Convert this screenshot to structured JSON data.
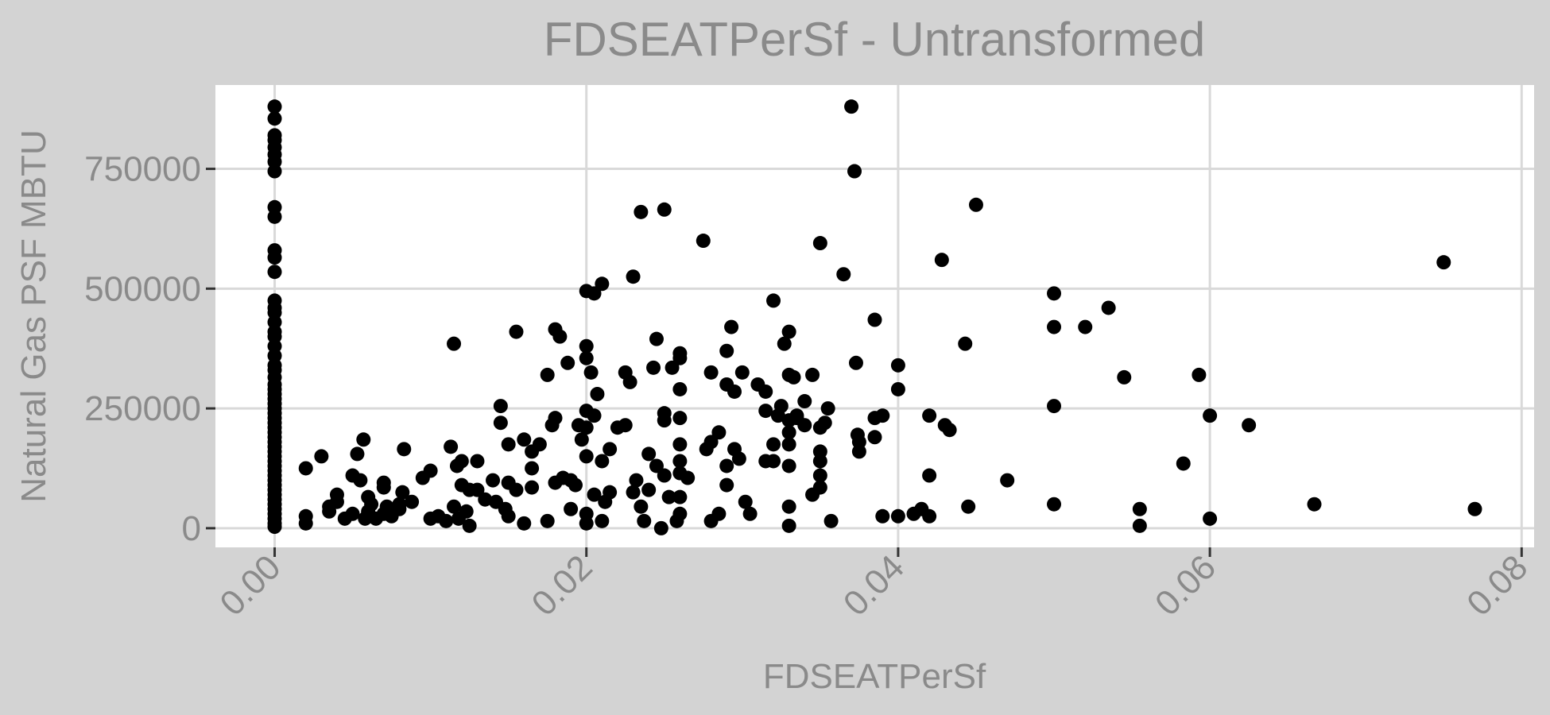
{
  "chart_data": {
    "type": "scatter",
    "title": "FDSEATPerSf - Untransformed",
    "xlabel": "FDSEATPerSf",
    "ylabel": "Natural Gas PSF MBTU",
    "xlim": [
      -0.0038,
      0.0808
    ],
    "ylim": [
      -40000,
      925000
    ],
    "x_ticks": [
      0,
      0.02,
      0.04,
      0.06,
      0.08
    ],
    "x_tick_labels": [
      "0.00",
      "0.02",
      "0.04",
      "0.06",
      "0.08"
    ],
    "y_ticks": [
      0,
      250000,
      500000,
      750000
    ],
    "y_tick_labels": [
      "0",
      "250000",
      "500000",
      "750000"
    ],
    "grid": true,
    "legend": "none",
    "series": [
      {
        "color": "#000000",
        "points": [
          [
            0,
            880000
          ],
          [
            0,
            855000
          ],
          [
            0,
            820000
          ],
          [
            0,
            810000
          ],
          [
            0,
            795000
          ],
          [
            0,
            780000
          ],
          [
            0,
            765000
          ],
          [
            0,
            745000
          ],
          [
            0,
            670000
          ],
          [
            0,
            650000
          ],
          [
            0,
            580000
          ],
          [
            0,
            565000
          ],
          [
            0,
            535000
          ],
          [
            0,
            475000
          ],
          [
            0,
            460000
          ],
          [
            0,
            450000
          ],
          [
            0,
            430000
          ],
          [
            0,
            410000
          ],
          [
            0,
            400000
          ],
          [
            0,
            380000
          ],
          [
            0,
            360000
          ],
          [
            0,
            340000
          ],
          [
            0,
            330000
          ],
          [
            0,
            315000
          ],
          [
            0,
            300000
          ],
          [
            0,
            290000
          ],
          [
            0,
            280000
          ],
          [
            0,
            270000
          ],
          [
            0,
            260000
          ],
          [
            0,
            250000
          ],
          [
            0,
            240000
          ],
          [
            0,
            230000
          ],
          [
            0,
            220000
          ],
          [
            0,
            210000
          ],
          [
            0,
            200000
          ],
          [
            0,
            190000
          ],
          [
            0,
            180000
          ],
          [
            0,
            170000
          ],
          [
            0,
            160000
          ],
          [
            0,
            150000
          ],
          [
            0,
            140000
          ],
          [
            0,
            130000
          ],
          [
            0,
            120000
          ],
          [
            0,
            110000
          ],
          [
            0,
            100000
          ],
          [
            0,
            90000
          ],
          [
            0,
            80000
          ],
          [
            0,
            70000
          ],
          [
            0,
            60000
          ],
          [
            0,
            50000
          ],
          [
            0,
            40000
          ],
          [
            0,
            30000
          ],
          [
            0,
            20000
          ],
          [
            0,
            10000
          ],
          [
            0,
            3000
          ],
          [
            0.002,
            125000
          ],
          [
            0.002,
            25000
          ],
          [
            0.002,
            10000
          ],
          [
            0.003,
            150000
          ],
          [
            0.0035,
            45000
          ],
          [
            0.0035,
            35000
          ],
          [
            0.004,
            70000
          ],
          [
            0.004,
            55000
          ],
          [
            0.0045,
            20000
          ],
          [
            0.005,
            110000
          ],
          [
            0.005,
            30000
          ],
          [
            0.0053,
            155000
          ],
          [
            0.0055,
            100000
          ],
          [
            0.0057,
            185000
          ],
          [
            0.0058,
            20000
          ],
          [
            0.006,
            65000
          ],
          [
            0.006,
            35000
          ],
          [
            0.0062,
            50000
          ],
          [
            0.0065,
            20000
          ],
          [
            0.007,
            95000
          ],
          [
            0.007,
            85000
          ],
          [
            0.007,
            30000
          ],
          [
            0.0072,
            45000
          ],
          [
            0.0075,
            25000
          ],
          [
            0.008,
            50000
          ],
          [
            0.008,
            40000
          ],
          [
            0.0082,
            75000
          ],
          [
            0.0083,
            165000
          ],
          [
            0.0088,
            55000
          ],
          [
            0.0095,
            105000
          ],
          [
            0.01,
            120000
          ],
          [
            0.01,
            20000
          ],
          [
            0.0105,
            25000
          ],
          [
            0.011,
            15000
          ],
          [
            0.0113,
            170000
          ],
          [
            0.0115,
            385000
          ],
          [
            0.0115,
            45000
          ],
          [
            0.0117,
            130000
          ],
          [
            0.0118,
            20000
          ],
          [
            0.012,
            140000
          ],
          [
            0.012,
            90000
          ],
          [
            0.0123,
            35000
          ],
          [
            0.0125,
            80000
          ],
          [
            0.0125,
            5000
          ],
          [
            0.013,
            140000
          ],
          [
            0.013,
            80000
          ],
          [
            0.0135,
            60000
          ],
          [
            0.014,
            100000
          ],
          [
            0.0142,
            55000
          ],
          [
            0.0145,
            255000
          ],
          [
            0.0145,
            220000
          ],
          [
            0.0148,
            40000
          ],
          [
            0.015,
            175000
          ],
          [
            0.015,
            95000
          ],
          [
            0.015,
            25000
          ],
          [
            0.0155,
            410000
          ],
          [
            0.0155,
            80000
          ],
          [
            0.016,
            185000
          ],
          [
            0.016,
            10000
          ],
          [
            0.0165,
            160000
          ],
          [
            0.0165,
            125000
          ],
          [
            0.0165,
            85000
          ],
          [
            0.017,
            175000
          ],
          [
            0.0175,
            320000
          ],
          [
            0.0175,
            15000
          ],
          [
            0.0178,
            215000
          ],
          [
            0.018,
            415000
          ],
          [
            0.018,
            230000
          ],
          [
            0.018,
            95000
          ],
          [
            0.0183,
            400000
          ],
          [
            0.0185,
            105000
          ],
          [
            0.0188,
            345000
          ],
          [
            0.019,
            100000
          ],
          [
            0.019,
            40000
          ],
          [
            0.0193,
            90000
          ],
          [
            0.0195,
            215000
          ],
          [
            0.0197,
            185000
          ],
          [
            0.02,
            495000
          ],
          [
            0.02,
            380000
          ],
          [
            0.02,
            355000
          ],
          [
            0.02,
            245000
          ],
          [
            0.02,
            210000
          ],
          [
            0.02,
            150000
          ],
          [
            0.02,
            30000
          ],
          [
            0.02,
            10000
          ],
          [
            0.0203,
            325000
          ],
          [
            0.0205,
            490000
          ],
          [
            0.0205,
            235000
          ],
          [
            0.0205,
            70000
          ],
          [
            0.0207,
            280000
          ],
          [
            0.021,
            510000
          ],
          [
            0.021,
            140000
          ],
          [
            0.021,
            15000
          ],
          [
            0.0212,
            55000
          ],
          [
            0.0215,
            165000
          ],
          [
            0.0215,
            75000
          ],
          [
            0.022,
            210000
          ],
          [
            0.0225,
            325000
          ],
          [
            0.0225,
            215000
          ],
          [
            0.0228,
            305000
          ],
          [
            0.023,
            525000
          ],
          [
            0.023,
            75000
          ],
          [
            0.0232,
            100000
          ],
          [
            0.0235,
            660000
          ],
          [
            0.0235,
            45000
          ],
          [
            0.0237,
            15000
          ],
          [
            0.024,
            155000
          ],
          [
            0.024,
            80000
          ],
          [
            0.0243,
            335000
          ],
          [
            0.0245,
            395000
          ],
          [
            0.0245,
            130000
          ],
          [
            0.0248,
            0
          ],
          [
            0.025,
            665000
          ],
          [
            0.025,
            240000
          ],
          [
            0.025,
            225000
          ],
          [
            0.025,
            110000
          ],
          [
            0.0253,
            65000
          ],
          [
            0.0255,
            335000
          ],
          [
            0.0258,
            15000
          ],
          [
            0.026,
            365000
          ],
          [
            0.026,
            355000
          ],
          [
            0.026,
            290000
          ],
          [
            0.026,
            230000
          ],
          [
            0.026,
            175000
          ],
          [
            0.026,
            140000
          ],
          [
            0.026,
            115000
          ],
          [
            0.026,
            65000
          ],
          [
            0.026,
            30000
          ],
          [
            0.0265,
            105000
          ],
          [
            0.0275,
            600000
          ],
          [
            0.0277,
            165000
          ],
          [
            0.028,
            325000
          ],
          [
            0.028,
            180000
          ],
          [
            0.028,
            15000
          ],
          [
            0.0285,
            200000
          ],
          [
            0.0285,
            30000
          ],
          [
            0.029,
            370000
          ],
          [
            0.029,
            300000
          ],
          [
            0.029,
            130000
          ],
          [
            0.029,
            90000
          ],
          [
            0.0293,
            420000
          ],
          [
            0.0295,
            165000
          ],
          [
            0.0295,
            285000
          ],
          [
            0.0298,
            145000
          ],
          [
            0.03,
            325000
          ],
          [
            0.0302,
            55000
          ],
          [
            0.0305,
            30000
          ],
          [
            0.031,
            300000
          ],
          [
            0.0315,
            245000
          ],
          [
            0.0315,
            285000
          ],
          [
            0.0315,
            140000
          ],
          [
            0.032,
            475000
          ],
          [
            0.032,
            175000
          ],
          [
            0.032,
            140000
          ],
          [
            0.0323,
            235000
          ],
          [
            0.0325,
            255000
          ],
          [
            0.0327,
            385000
          ],
          [
            0.033,
            410000
          ],
          [
            0.033,
            45000
          ],
          [
            0.0333,
            315000
          ],
          [
            0.0335,
            230000
          ],
          [
            0.034,
            265000
          ],
          [
            0.0345,
            320000
          ],
          [
            0.033,
            5000
          ],
          [
            0.033,
            320000
          ],
          [
            0.033,
            225000
          ],
          [
            0.033,
            200000
          ],
          [
            0.033,
            175000
          ],
          [
            0.033,
            130000
          ],
          [
            0.0335,
            235000
          ],
          [
            0.034,
            215000
          ],
          [
            0.0345,
            70000
          ],
          [
            0.035,
            595000
          ],
          [
            0.035,
            85000
          ],
          [
            0.035,
            110000
          ],
          [
            0.035,
            140000
          ],
          [
            0.035,
            160000
          ],
          [
            0.035,
            210000
          ],
          [
            0.0353,
            220000
          ],
          [
            0.0355,
            250000
          ],
          [
            0.0357,
            15000
          ],
          [
            0.0365,
            530000
          ],
          [
            0.037,
            880000
          ],
          [
            0.0372,
            745000
          ],
          [
            0.0373,
            345000
          ],
          [
            0.0374,
            195000
          ],
          [
            0.0375,
            180000
          ],
          [
            0.0375,
            160000
          ],
          [
            0.0385,
            435000
          ],
          [
            0.0385,
            230000
          ],
          [
            0.0385,
            190000
          ],
          [
            0.039,
            235000
          ],
          [
            0.039,
            25000
          ],
          [
            0.04,
            340000
          ],
          [
            0.04,
            290000
          ],
          [
            0.04,
            25000
          ],
          [
            0.041,
            30000
          ],
          [
            0.0415,
            40000
          ],
          [
            0.042,
            235000
          ],
          [
            0.042,
            110000
          ],
          [
            0.042,
            25000
          ],
          [
            0.0428,
            560000
          ],
          [
            0.043,
            215000
          ],
          [
            0.0433,
            205000
          ],
          [
            0.0443,
            385000
          ],
          [
            0.0445,
            45000
          ],
          [
            0.045,
            675000
          ],
          [
            0.047,
            100000
          ],
          [
            0.05,
            490000
          ],
          [
            0.05,
            420000
          ],
          [
            0.05,
            255000
          ],
          [
            0.05,
            50000
          ],
          [
            0.052,
            420000
          ],
          [
            0.0535,
            460000
          ],
          [
            0.0545,
            315000
          ],
          [
            0.0555,
            40000
          ],
          [
            0.0555,
            5000
          ],
          [
            0.0583,
            135000
          ],
          [
            0.0593,
            320000
          ],
          [
            0.06,
            235000
          ],
          [
            0.06,
            20000
          ],
          [
            0.0625,
            215000
          ],
          [
            0.0667,
            50000
          ],
          [
            0.075,
            555000
          ],
          [
            0.077,
            40000
          ]
        ]
      }
    ]
  }
}
